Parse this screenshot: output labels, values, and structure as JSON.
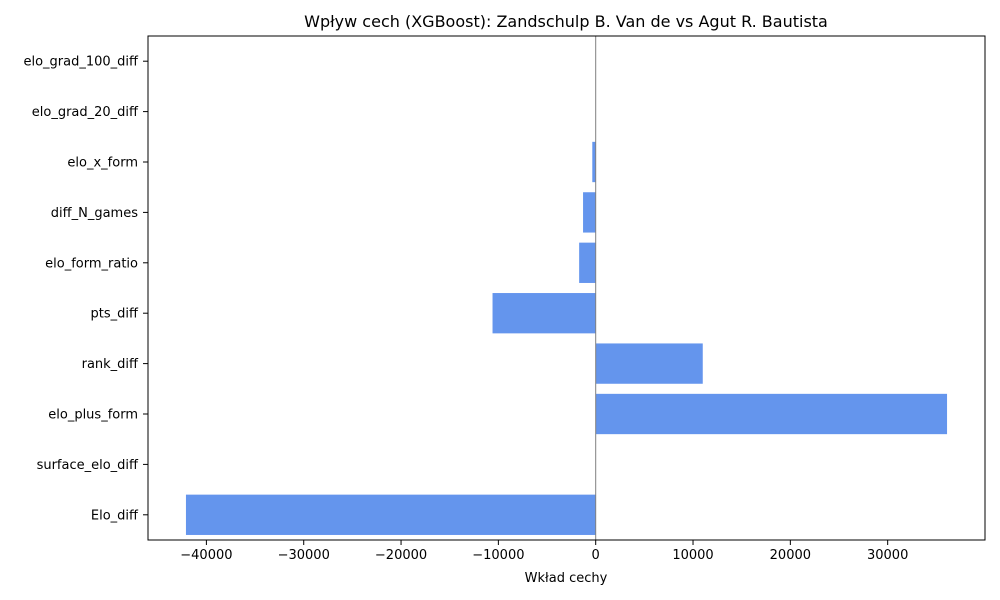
{
  "chart_data": {
    "type": "bar",
    "orientation": "horizontal",
    "title": "Wpływ cech (XGBoost): Zandschulp B. Van de vs Agut R. Bautista",
    "xlabel": "Wkład cechy",
    "ylabel": "",
    "categories": [
      "Elo_diff",
      "surface_elo_diff",
      "elo_plus_form",
      "rank_diff",
      "pts_diff",
      "elo_form_ratio",
      "diff_N_games",
      "elo_x_form",
      "elo_grad_20_diff",
      "elo_grad_100_diff"
    ],
    "values": [
      -42100,
      0,
      36100,
      11000,
      -10600,
      -1700,
      -1300,
      -350,
      0,
      0
    ],
    "xlim": [
      -46000,
      40000
    ],
    "xticks": [
      -40000,
      -30000,
      -20000,
      -10000,
      0,
      10000,
      20000,
      30000
    ],
    "xtick_labels": [
      "−40000",
      "−30000",
      "−20000",
      "−10000",
      "0",
      "10000",
      "20000",
      "30000"
    ],
    "zero_line": true,
    "grid": false,
    "legend": "none",
    "bar_color": "#6495ED",
    "zero_line_color": "#808080"
  }
}
